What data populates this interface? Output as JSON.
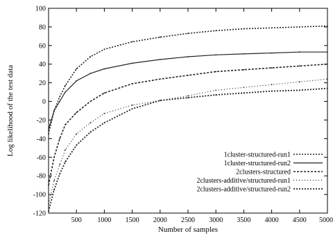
{
  "chart_data": {
    "type": "line",
    "title": "",
    "xlabel": "Number of samples",
    "ylabel": "Log likelihood of the test data",
    "xlim": [
      0,
      5000
    ],
    "ylim": [
      -120,
      100
    ],
    "xticks": [
      500,
      1000,
      1500,
      2000,
      2500,
      3000,
      3500,
      4000,
      4500,
      5000
    ],
    "xtick_labels": [
      "500",
      "1000",
      "1500",
      "2000",
      "2500",
      "3000",
      "3500",
      "4000",
      "4500",
      "5000"
    ],
    "yticks": [
      -120,
      -100,
      -80,
      -60,
      -40,
      -20,
      0,
      20,
      40,
      60,
      80,
      100
    ],
    "ytick_labels": [
      "-120",
      "-100",
      "-80",
      "-60",
      "-40",
      "-20",
      "0",
      "20",
      "40",
      "60",
      "80",
      "100"
    ],
    "grid": false,
    "legend_position": "bottom-right",
    "series": [
      {
        "name": "1cluster-structured-run1",
        "x": [
          0,
          100,
          200,
          300,
          500,
          750,
          1000,
          1500,
          2000,
          2500,
          3000,
          3500,
          4000,
          4500,
          5000
        ],
        "y": [
          -35,
          -10,
          5,
          17,
          35,
          48,
          56,
          64,
          69,
          73,
          76,
          78,
          79,
          80,
          81
        ]
      },
      {
        "name": "1cluster-structured-run2",
        "x": [
          0,
          100,
          200,
          300,
          500,
          750,
          1000,
          1500,
          2000,
          2500,
          3000,
          3500,
          4000,
          4500,
          5000
        ],
        "y": [
          -30,
          -10,
          0,
          10,
          22,
          30,
          35,
          41,
          45,
          48,
          50,
          51,
          52,
          53,
          53
        ]
      },
      {
        "name": "2clusters-structured",
        "x": [
          0,
          100,
          200,
          300,
          500,
          750,
          1000,
          1500,
          2000,
          2500,
          3000,
          3500,
          4000,
          4500,
          5000
        ],
        "y": [
          -90,
          -60,
          -40,
          -25,
          -12,
          0,
          9,
          19,
          24,
          28,
          32,
          34,
          36,
          38,
          40
        ]
      },
      {
        "name": "2clusters-additive/structured-run1",
        "x": [
          0,
          100,
          200,
          300,
          500,
          750,
          1000,
          1500,
          2000,
          2500,
          3000,
          3500,
          4000,
          4500,
          5000
        ],
        "y": [
          -110,
          -85,
          -68,
          -52,
          -35,
          -23,
          -13,
          -4,
          1,
          6,
          12,
          15,
          18,
          21,
          24
        ]
      },
      {
        "name": "2clusters-additive/structured-run2",
        "x": [
          0,
          100,
          200,
          300,
          500,
          750,
          1000,
          1500,
          2000,
          2500,
          3000,
          3500,
          4000,
          4500,
          5000
        ],
        "y": [
          -118,
          -95,
          -78,
          -65,
          -47,
          -33,
          -23,
          -8,
          1,
          4,
          7,
          9,
          11,
          12,
          14
        ]
      }
    ]
  }
}
